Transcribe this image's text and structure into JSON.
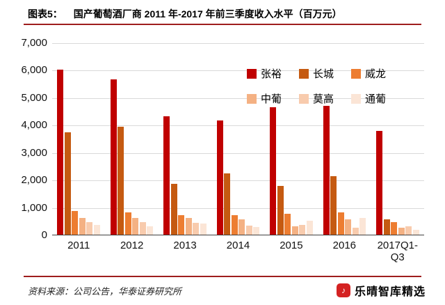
{
  "header": {
    "label": "图表5：",
    "title": "国产葡萄酒厂商 2011 年-2017 年前三季度收入水平（百万元）"
  },
  "footer": {
    "source": "资料来源：公司公告，华泰证券研究所",
    "brand": "乐晴智库精选",
    "brand_icon_glyph": "♪"
  },
  "chart_data": {
    "type": "bar",
    "title": "国产葡萄酒厂商 2011 年-2017 年前三季度收入水平（百万元）",
    "xlabel": "",
    "ylabel": "",
    "ylim": [
      0,
      7000
    ],
    "ytick_step": 1000,
    "grid": true,
    "legend_position": "inside-top-right",
    "categories": [
      "2011",
      "2012",
      "2013",
      "2014",
      "2015",
      "2016",
      "2017Q1-Q3"
    ],
    "series": [
      {
        "name": "张裕",
        "color": "#C00000",
        "values": [
          6010,
          5650,
          4300,
          4150,
          4650,
          4700,
          3780
        ]
      },
      {
        "name": "长城",
        "color": "#C55A11",
        "values": [
          3740,
          3930,
          1860,
          2240,
          1780,
          2130,
          550
        ]
      },
      {
        "name": "威龙",
        "color": "#ED7D31",
        "values": [
          860,
          800,
          700,
          700,
          760,
          800,
          450
        ]
      },
      {
        "name": "中葡",
        "color": "#F4B183",
        "values": [
          620,
          620,
          620,
          560,
          300,
          560,
          250
        ]
      },
      {
        "name": "莫高",
        "color": "#F8CBAD",
        "values": [
          450,
          460,
          440,
          330,
          350,
          250,
          300
        ]
      },
      {
        "name": "通葡",
        "color": "#FBE5D6",
        "values": [
          350,
          300,
          400,
          280,
          500,
          600,
          180
        ]
      }
    ]
  }
}
